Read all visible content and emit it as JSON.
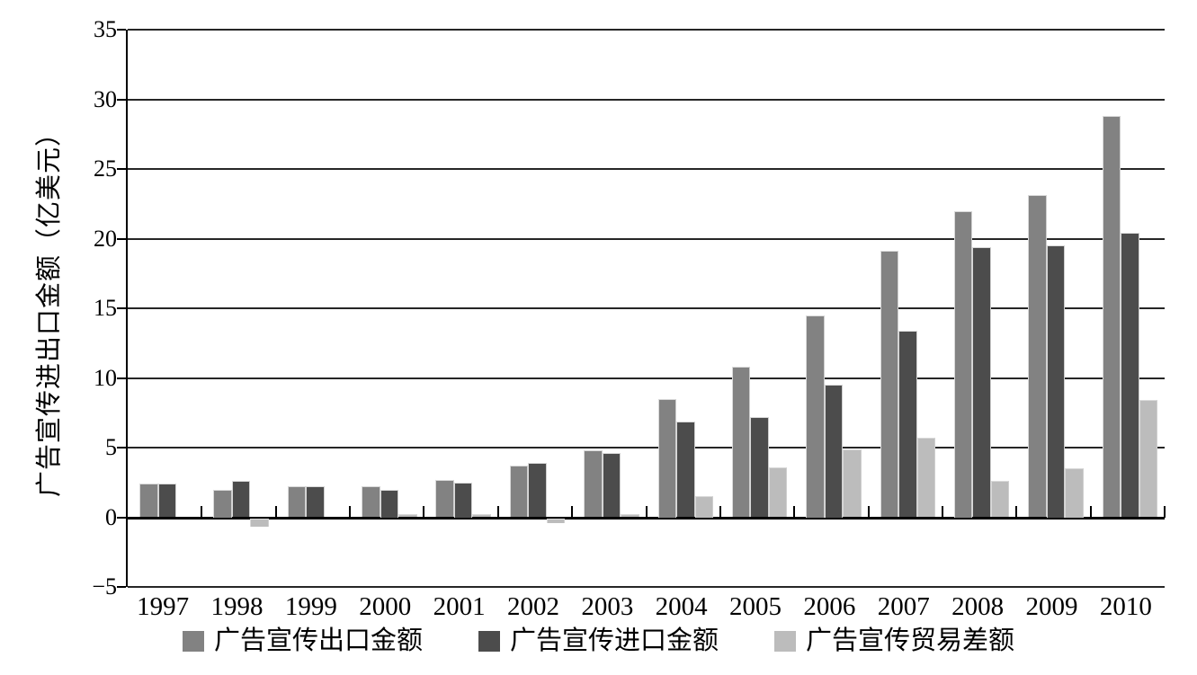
{
  "chart_data": {
    "type": "bar",
    "title": "",
    "ylabel": "广告宣传进出口金额（亿美元）",
    "xlabel": "",
    "categories": [
      "1997",
      "1998",
      "1999",
      "2000",
      "2001",
      "2002",
      "2003",
      "2004",
      "2005",
      "2006",
      "2007",
      "2008",
      "2009",
      "2010"
    ],
    "series": [
      {
        "name": "广告宣传出口金额",
        "color": "#828282",
        "values": [
          2.4,
          2.0,
          2.2,
          2.2,
          2.7,
          3.7,
          4.8,
          8.5,
          10.8,
          14.5,
          19.1,
          22.0,
          23.1,
          28.8
        ]
      },
      {
        "name": "广告宣传进口金额",
        "color": "#4c4c4c",
        "values": [
          2.4,
          2.6,
          2.2,
          2.0,
          2.5,
          3.9,
          4.6,
          6.9,
          7.2,
          9.5,
          13.4,
          19.4,
          19.5,
          20.4
        ]
      },
      {
        "name": "广告宣传贸易差额",
        "color": "#bcbcbc",
        "values": [
          0.0,
          -0.6,
          0.0,
          0.2,
          0.2,
          -0.3,
          0.2,
          1.5,
          3.6,
          4.9,
          5.7,
          2.6,
          3.5,
          8.4
        ]
      }
    ],
    "ylim": [
      -5,
      35
    ],
    "yticks": [
      35,
      30,
      25,
      20,
      15,
      10,
      5,
      0,
      -5
    ],
    "grid": true,
    "legend_position": "bottom",
    "colors": {
      "gridline": "#262626",
      "axis": "#000000",
      "background": "#ffffff"
    }
  }
}
